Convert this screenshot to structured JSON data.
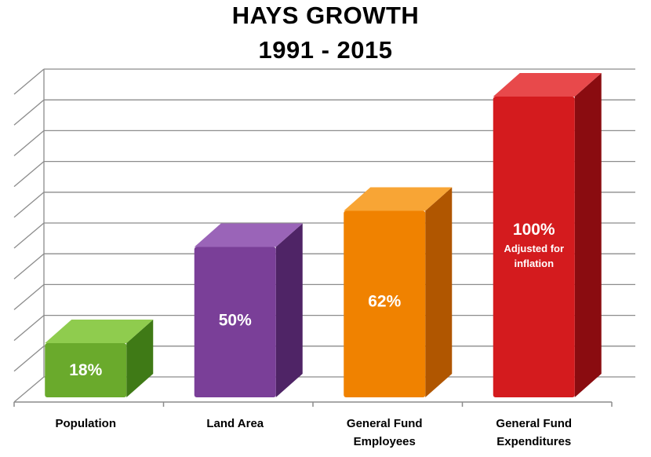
{
  "chart_data": {
    "type": "bar",
    "title_lines": [
      "HAYS GROWTH",
      "1991 - 2015"
    ],
    "categories": [
      {
        "lines": [
          "Population"
        ]
      },
      {
        "lines": [
          "Land Area"
        ]
      },
      {
        "lines": [
          "General Fund",
          "Employees"
        ]
      },
      {
        "lines": [
          "General Fund",
          "Expenditures"
        ]
      }
    ],
    "values": [
      18,
      50,
      62,
      100
    ],
    "value_labels": [
      "18%",
      "50%",
      "62%",
      "100%"
    ],
    "annotations": [
      null,
      null,
      null,
      [
        "Adjusted for",
        "inflation"
      ]
    ],
    "colors": [
      "#6aaa2c",
      "#7a3f98",
      "#f08200",
      "#d41b1e"
    ],
    "side_colors": [
      "#3f7a16",
      "#4f2466",
      "#b05600",
      "#8a0c10"
    ],
    "top_colors": [
      "#8fcc4e",
      "#9a64b8",
      "#f8a535",
      "#e8494b"
    ],
    "ylim": [
      0,
      100
    ],
    "gridlines": 11,
    "grid": true,
    "xlabel": "",
    "ylabel": ""
  }
}
